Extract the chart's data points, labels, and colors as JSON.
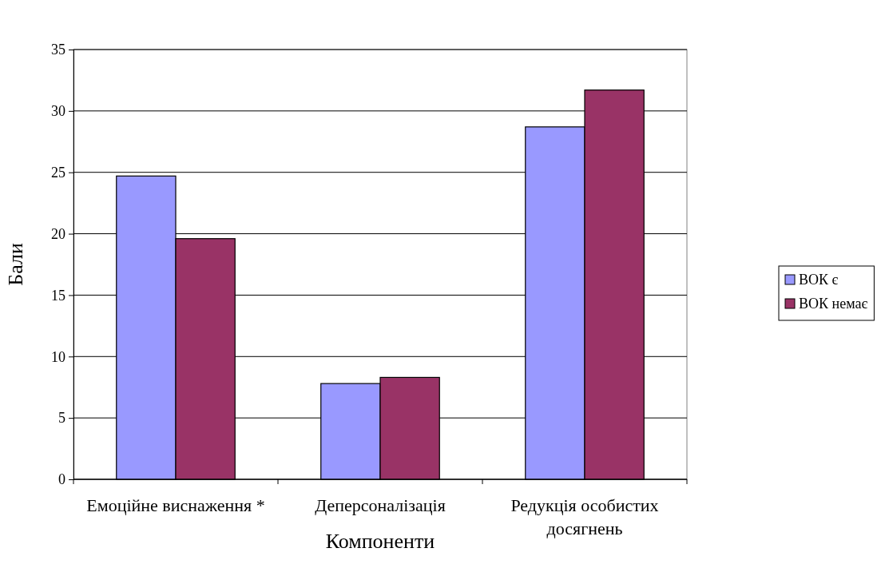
{
  "chart_data": {
    "type": "bar",
    "xlabel": "Компоненти",
    "ylabel": "Бали",
    "categories": [
      "Емоційне виснаження *",
      "Деперсоналізація",
      "Редукція особистих досягнень"
    ],
    "series": [
      {
        "name": "ВОК є",
        "color": "#9999ff",
        "values": [
          24.7,
          7.8,
          28.7
        ]
      },
      {
        "name": "ВОК немає",
        "color": "#993366",
        "values": [
          19.6,
          8.3,
          31.7
        ]
      }
    ],
    "ylim": [
      0,
      35
    ],
    "yticks": [
      0,
      5,
      10,
      15,
      20,
      25,
      30,
      35
    ],
    "grid": "y",
    "legend": "right"
  }
}
